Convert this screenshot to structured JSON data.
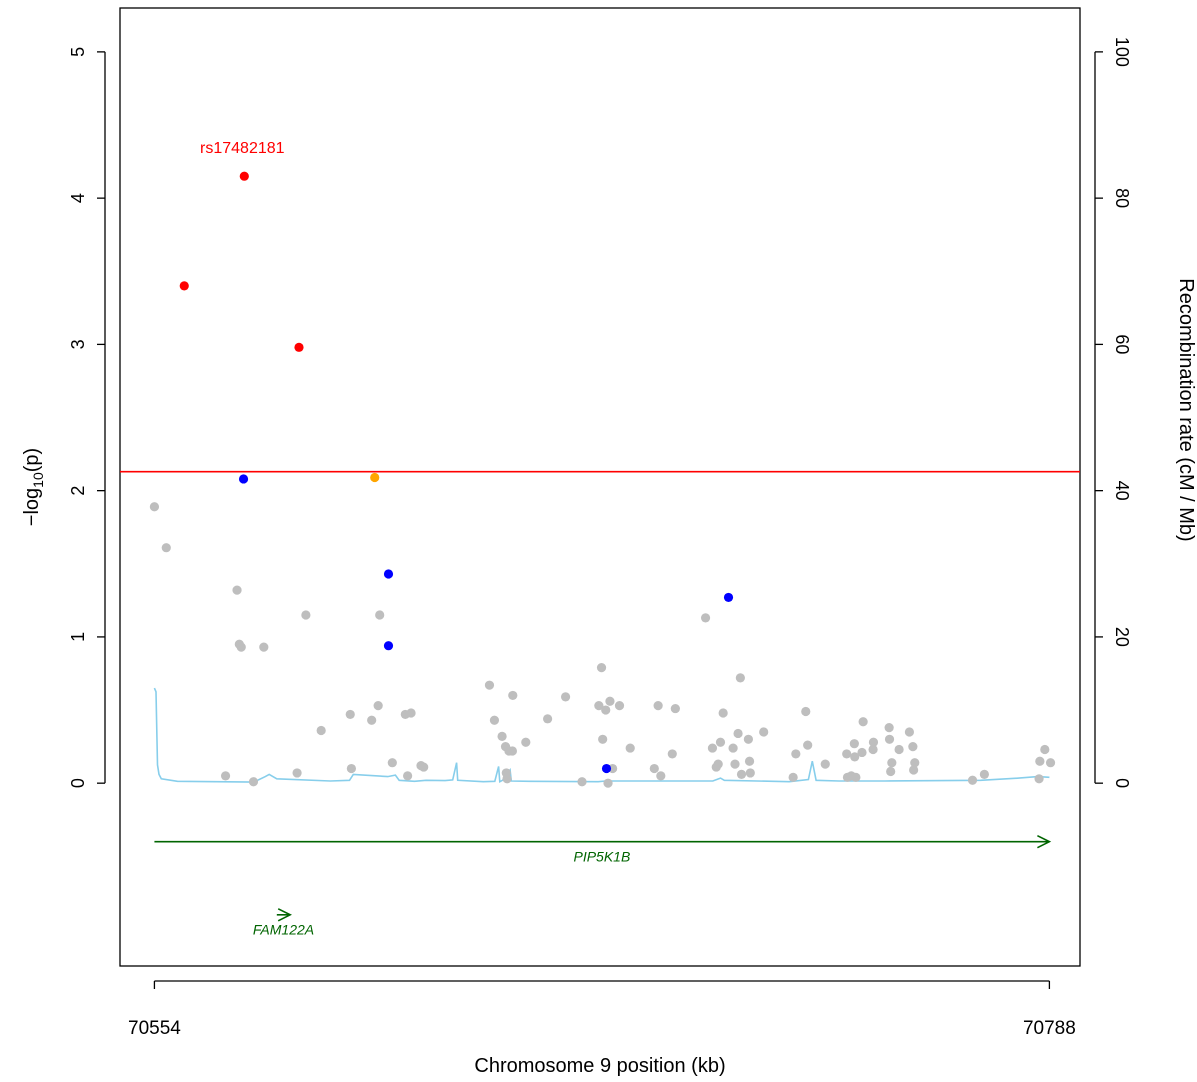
{
  "chart_data": {
    "type": "scatter",
    "title": "",
    "xlabel": "Chromosome 9 position (kb)",
    "ylabel_main": "−log",
    "ylabel_sub": "10",
    "ylabel_tail": "(p)",
    "y2label": "Recombination rate (cM / Mb)",
    "xlim": [
      70545,
      70796
    ],
    "ylim": [
      -1.25,
      5.3
    ],
    "y2_scale": 20,
    "x_ticks": [
      {
        "value": 70554,
        "label": "70554"
      },
      {
        "value": 70788,
        "label": "70788"
      }
    ],
    "y_ticks": [
      0,
      1,
      2,
      3,
      4,
      5
    ],
    "y_tick_labels": [
      "0",
      "1",
      "2",
      "3",
      "4",
      "5"
    ],
    "y2_ticks": [
      0,
      20,
      40,
      60,
      80,
      100
    ],
    "y2_tick_labels": [
      "0",
      "20",
      "40",
      "60",
      "80",
      "100"
    ],
    "threshold": {
      "y": 2.13,
      "color": "#ff0000"
    },
    "lead_snp": {
      "label": "rs17482181",
      "x": 70577.5,
      "y": 4.15,
      "color": "#ff0000"
    },
    "colors": {
      "red": "#ff0000",
      "orange": "#ffa500",
      "blue": "#0000ff",
      "gray": "#bebebe",
      "recomb": "#87ceeb",
      "gene": "#006400"
    },
    "series": [
      {
        "color": "red",
        "points": [
          [
            70577.5,
            4.15
          ],
          [
            70561.8,
            3.4
          ],
          [
            70591.8,
            2.98
          ]
        ]
      },
      {
        "color": "orange",
        "points": [
          [
            70611.6,
            2.09
          ]
        ]
      },
      {
        "color": "blue",
        "points": [
          [
            70577.3,
            2.08
          ],
          [
            70615.2,
            1.43
          ],
          [
            70615.2,
            0.94
          ],
          [
            70672.2,
            0.1
          ],
          [
            70704.1,
            1.27
          ]
        ]
      },
      {
        "color": "gray",
        "points": [
          [
            70554.0,
            1.89
          ],
          [
            70557.1,
            1.61
          ],
          [
            70575.6,
            1.32
          ],
          [
            70576.2,
            0.95
          ],
          [
            70576.7,
            0.93
          ],
          [
            70582.6,
            0.93
          ],
          [
            70593.6,
            1.15
          ],
          [
            70612.9,
            1.15
          ],
          [
            70572.6,
            0.05
          ],
          [
            70579.9,
            0.01
          ],
          [
            70591.3,
            0.07
          ],
          [
            70597.6,
            0.36
          ],
          [
            70605.2,
            0.47
          ],
          [
            70605.5,
            0.1
          ],
          [
            70610.8,
            0.43
          ],
          [
            70612.5,
            0.53
          ],
          [
            70616.2,
            0.14
          ],
          [
            70619.6,
            0.47
          ],
          [
            70621.1,
            0.48
          ],
          [
            70620.2,
            0.05
          ],
          [
            70623.7,
            0.12
          ],
          [
            70624.4,
            0.11
          ],
          [
            70641.6,
            0.67
          ],
          [
            70642.9,
            0.43
          ],
          [
            70644.9,
            0.32
          ],
          [
            70645.8,
            0.25
          ],
          [
            70646.7,
            0.22
          ],
          [
            70647.6,
            0.22
          ],
          [
            70646.0,
            0.07
          ],
          [
            70646.2,
            0.03
          ],
          [
            70647.7,
            0.6
          ],
          [
            70651.1,
            0.28
          ],
          [
            70656.8,
            0.44
          ],
          [
            70661.5,
            0.59
          ],
          [
            70665.8,
            0.01
          ],
          [
            70670.9,
            0.79
          ],
          [
            70670.2,
            0.53
          ],
          [
            70671.2,
            0.3
          ],
          [
            70672.0,
            0.5
          ],
          [
            70673.1,
            0.56
          ],
          [
            70673.8,
            0.1
          ],
          [
            70672.6,
            0.0
          ],
          [
            70675.6,
            0.53
          ],
          [
            70678.4,
            0.24
          ],
          [
            70684.7,
            0.1
          ],
          [
            70685.7,
            0.53
          ],
          [
            70686.4,
            0.05
          ],
          [
            70689.4,
            0.2
          ],
          [
            70690.2,
            0.51
          ],
          [
            70698.1,
            1.13
          ],
          [
            70699.9,
            0.24
          ],
          [
            70700.9,
            0.11
          ],
          [
            70701.4,
            0.13
          ],
          [
            70702.0,
            0.28
          ],
          [
            70702.7,
            0.48
          ],
          [
            70705.3,
            0.24
          ],
          [
            70705.8,
            0.13
          ],
          [
            70706.6,
            0.34
          ],
          [
            70707.2,
            0.72
          ],
          [
            70707.5,
            0.06
          ],
          [
            70709.3,
            0.3
          ],
          [
            70709.6,
            0.15
          ],
          [
            70709.8,
            0.07
          ],
          [
            70713.3,
            0.35
          ],
          [
            70721.0,
            0.04
          ],
          [
            70721.7,
            0.2
          ],
          [
            70724.3,
            0.49
          ],
          [
            70724.8,
            0.26
          ],
          [
            70729.4,
            0.13
          ],
          [
            70735.0,
            0.2
          ],
          [
            70735.2,
            0.04
          ],
          [
            70736.2,
            0.05
          ],
          [
            70737.0,
            0.27
          ],
          [
            70737.1,
            0.18
          ],
          [
            70737.4,
            0.04
          ],
          [
            70739.0,
            0.21
          ],
          [
            70739.3,
            0.42
          ],
          [
            70741.9,
            0.23
          ],
          [
            70742.0,
            0.28
          ],
          [
            70746.1,
            0.38
          ],
          [
            70746.2,
            0.3
          ],
          [
            70746.5,
            0.08
          ],
          [
            70746.8,
            0.14
          ],
          [
            70748.7,
            0.23
          ],
          [
            70751.4,
            0.35
          ],
          [
            70752.3,
            0.25
          ],
          [
            70752.5,
            0.09
          ],
          [
            70752.8,
            0.14
          ],
          [
            70767.9,
            0.02
          ],
          [
            70771.0,
            0.06
          ],
          [
            70785.3,
            0.03
          ],
          [
            70785.5,
            0.15
          ],
          [
            70786.8,
            0.23
          ],
          [
            70788.3,
            0.14
          ]
        ]
      }
    ],
    "recomb_line": [
      [
        70554.0,
        13.0
      ],
      [
        70554.4,
        12.5
      ],
      [
        70554.8,
        2.5
      ],
      [
        70555.2,
        1.2
      ],
      [
        70555.8,
        0.6
      ],
      [
        70560.0,
        0.25
      ],
      [
        70580.0,
        0.15
      ],
      [
        70583.0,
        0.9
      ],
      [
        70584.0,
        1.2
      ],
      [
        70586.0,
        0.6
      ],
      [
        70600.0,
        0.3
      ],
      [
        70605.0,
        0.4
      ],
      [
        70606.0,
        1.2
      ],
      [
        70615.0,
        0.9
      ],
      [
        70617.0,
        1.1
      ],
      [
        70618.0,
        0.4
      ],
      [
        70622.0,
        0.25
      ],
      [
        70625.0,
        0.4
      ],
      [
        70630.0,
        0.35
      ],
      [
        70632.0,
        0.45
      ],
      [
        70633.0,
        2.8
      ],
      [
        70633.3,
        0.4
      ],
      [
        70640.0,
        0.2
      ],
      [
        70643.0,
        0.25
      ],
      [
        70644.0,
        2.3
      ],
      [
        70644.3,
        0.2
      ],
      [
        70645.0,
        0.4
      ],
      [
        70647.0,
        1.8
      ],
      [
        70647.3,
        0.3
      ],
      [
        70652.0,
        0.25
      ],
      [
        70670.0,
        0.2
      ],
      [
        70672.0,
        0.3
      ],
      [
        70700.0,
        0.3
      ],
      [
        70702.0,
        0.7
      ],
      [
        70703.0,
        0.4
      ],
      [
        70720.0,
        0.2
      ],
      [
        70725.0,
        0.5
      ],
      [
        70726.0,
        3.0
      ],
      [
        70727.0,
        0.4
      ],
      [
        70733.0,
        0.3
      ],
      [
        70745.0,
        0.3
      ],
      [
        70770.0,
        0.4
      ],
      [
        70780.0,
        0.7
      ],
      [
        70785.0,
        0.9
      ],
      [
        70788.0,
        0.8
      ]
    ],
    "genes": [
      {
        "name": "PIP5K1B",
        "start": 70554,
        "end": 70788,
        "y": -0.4,
        "label_y": -0.5
      },
      {
        "name": "FAM122A",
        "start": 70586,
        "end": 70589.5,
        "y": -0.9,
        "label_y": -1.0
      }
    ]
  }
}
